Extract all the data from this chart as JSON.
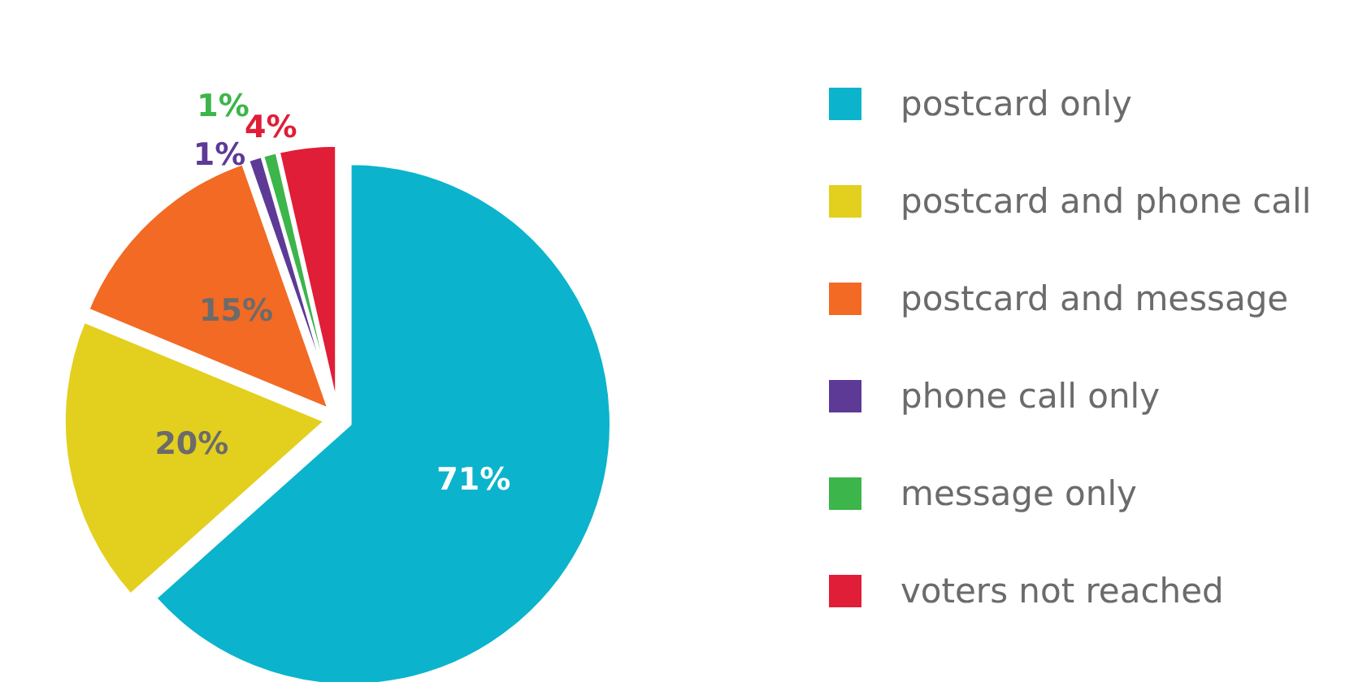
{
  "chart_data": {
    "type": "pie",
    "categories": [
      "postcard only",
      "postcard and phone call",
      "postcard and message",
      "phone call only",
      "message only",
      "voters not reached"
    ],
    "values": [
      71,
      20,
      15,
      1,
      1,
      4
    ],
    "colors": [
      "#0bb4cc",
      "#e3cf1e",
      "#f26a24",
      "#5d3a96",
      "#3cb54a",
      "#e01e37"
    ],
    "value_labels": [
      "71%",
      "20%",
      "15%",
      "1%",
      "1%",
      "4%"
    ],
    "legend": "right"
  }
}
